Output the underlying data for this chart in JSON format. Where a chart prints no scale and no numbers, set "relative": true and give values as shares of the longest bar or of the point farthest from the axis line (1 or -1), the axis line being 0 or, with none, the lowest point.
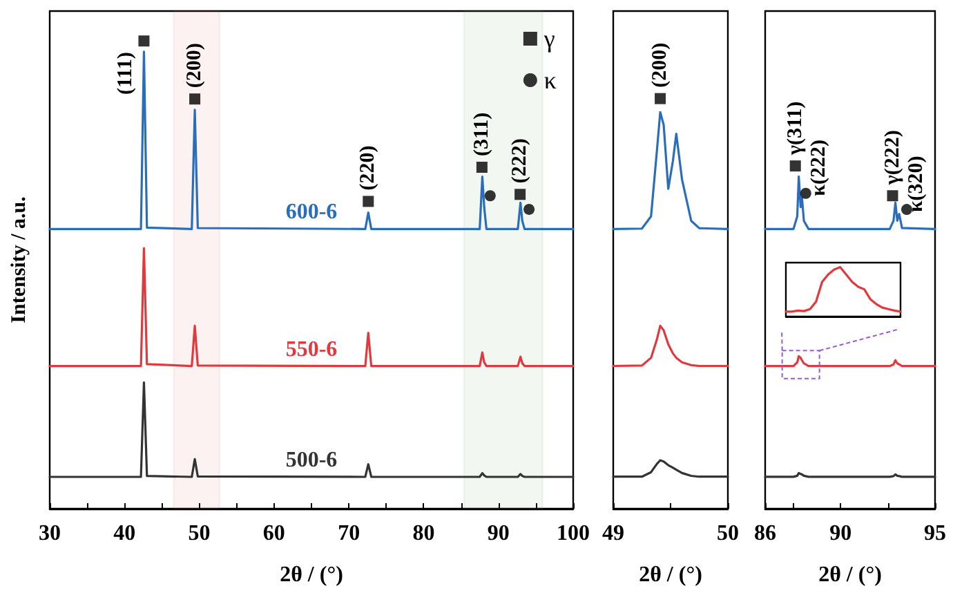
{
  "chart_data": [
    {
      "type": "line",
      "relative": true,
      "xlabel": "2θ / (°)",
      "ylabel": "Intensity / a.u.",
      "xlim": [
        30,
        100
      ],
      "xticks": [
        30,
        {
          "value": 35,
          "label": null
        },
        40,
        {
          "value": 45,
          "label": null
        },
        50,
        {
          "value": 55,
          "label": null
        },
        60,
        {
          "value": 65,
          "label": null
        },
        70,
        {
          "value": 75,
          "label": null
        },
        80,
        {
          "value": 85,
          "label": null
        },
        90,
        {
          "value": 95,
          "label": null
        },
        100
      ],
      "tick_labels": "x",
      "legend": "top right",
      "x": [
        30,
        42.2,
        42.6,
        43.0,
        49.0,
        49.4,
        49.8,
        72.2,
        72.6,
        73.0,
        87.5,
        87.85,
        88.1,
        88.4,
        92.6,
        92.95,
        93.2,
        93.5,
        100
      ],
      "series": [
        {
          "name": "600-6",
          "color": "#2a6ebb",
          "values": [
            0.598,
            0.598,
            0.977,
            0.601,
            0.598,
            0.853,
            0.6,
            0.598,
            0.633,
            0.598,
            0.598,
            0.71,
            0.645,
            0.598,
            0.598,
            0.654,
            0.615,
            0.598,
            0.598
          ]
        },
        {
          "name": "550-6",
          "color": "#e0393e",
          "values": [
            0.305,
            0.305,
            0.557,
            0.309,
            0.305,
            0.391,
            0.306,
            0.305,
            0.376,
            0.305,
            0.305,
            0.334,
            0.313,
            0.305,
            0.305,
            0.325,
            0.311,
            0.305,
            0.305
          ]
        },
        {
          "name": "500-6",
          "color": "#333333",
          "values": [
            0.068,
            0.068,
            0.27,
            0.07,
            0.068,
            0.106,
            0.069,
            0.068,
            0.095,
            0.068,
            0.068,
            0.076,
            0.071,
            0.068,
            0.068,
            0.074,
            0.07,
            0.068,
            0.068
          ]
        },
        {
          "name": "γ",
          "type": "scatter",
          "marker": "square",
          "color": "#000000",
          "x": [
            42.6,
            49.4,
            72.6,
            87.8,
            92.9
          ],
          "values": [
            1.0,
            0.876,
            0.657,
            0.73,
            0.672
          ]
        },
        {
          "name": "κ",
          "type": "scatter",
          "marker": "circle",
          "color": "#000000",
          "x": [
            88.9,
            94.1
          ],
          "values": [
            0.669,
            0.64
          ]
        }
      ],
      "bands": [
        {
          "axis": "x",
          "from": 46.6,
          "to": 52.7,
          "color": "#d9534f"
        },
        {
          "axis": "x",
          "from": 85.4,
          "to": 95.9,
          "color": "#5a9a5a"
        }
      ],
      "annotations": [
        {
          "text": "(111)",
          "x": 42.6,
          "y": 1.0
        },
        {
          "text": "(200)",
          "x": 49.4,
          "y": 0.876
        },
        {
          "text": "(220)",
          "x": 72.6,
          "y": 0.657
        },
        {
          "text": "(311)",
          "x": 87.8,
          "y": 0.73
        },
        {
          "text": "(222)",
          "x": 92.9,
          "y": 0.672
        }
      ]
    },
    {
      "type": "line",
      "relative": true,
      "xlabel": "2θ / (°)",
      "xlim": [
        49,
        50
      ],
      "xticks": [
        49,
        {
          "value": 49.5,
          "label": null
        },
        50
      ],
      "tick_labels": "x",
      "x": [
        49,
        49.25,
        49.33,
        49.38,
        49.41,
        49.44,
        49.48,
        49.52,
        49.55,
        49.6,
        49.68,
        49.75,
        50
      ],
      "series": [
        {
          "color": "#2a6ebb",
          "values": [
            0.682,
            0.683,
            0.713,
            0.87,
            0.967,
            0.936,
            0.78,
            0.847,
            0.914,
            0.803,
            0.702,
            0.684,
            0.682
          ]
        },
        {
          "color": "#e0393e",
          "values": [
            0.348,
            0.349,
            0.368,
            0.412,
            0.446,
            0.435,
            0.401,
            0.379,
            0.368,
            0.357,
            0.35,
            0.348,
            0.348
          ]
        },
        {
          "color": "#333333",
          "values": [
            0.078,
            0.078,
            0.089,
            0.109,
            0.118,
            0.115,
            0.106,
            0.1,
            0.095,
            0.087,
            0.08,
            0.078,
            0.078
          ]
        },
        {
          "type": "scatter",
          "marker": "square",
          "color": "#000000",
          "x": [
            49.41
          ],
          "values": [
            1.0
          ]
        }
      ],
      "annotations": [
        {
          "text": "(200)",
          "x": 49.41,
          "y": 1.0
        }
      ]
    },
    {
      "type": "line",
      "relative": true,
      "xlabel": "2θ / (°)",
      "xlim": [
        86,
        95
      ],
      "xticks": [
        86,
        {
          "value": 87.5,
          "label": null
        },
        90,
        {
          "value": 92.5,
          "label": null
        },
        95
      ],
      "tick_labels": "x",
      "x": [
        86,
        87.5,
        87.7,
        87.78,
        87.88,
        87.95,
        88.05,
        88.3,
        92.6,
        92.8,
        92.9,
        93.0,
        93.1,
        93.25,
        95
      ],
      "series": [
        {
          "color": "#2a6ebb",
          "values": [
            0.816,
            0.816,
            0.853,
            0.969,
            0.88,
            0.907,
            0.84,
            0.816,
            0.816,
            0.84,
            0.893,
            0.84,
            0.86,
            0.819,
            0.816
          ]
        },
        {
          "color": "#e0393e",
          "values": [
            0.416,
            0.416,
            0.427,
            0.445,
            0.44,
            0.433,
            0.424,
            0.416,
            0.416,
            0.421,
            0.433,
            0.424,
            0.421,
            0.416,
            0.416
          ]
        },
        {
          "color": "#333333",
          "values": [
            0.093,
            0.093,
            0.096,
            0.104,
            0.101,
            0.1,
            0.096,
            0.093,
            0.093,
            0.095,
            0.1,
            0.096,
            0.095,
            0.093,
            0.093
          ]
        },
        {
          "type": "scatter",
          "marker": "square",
          "color": "#000000",
          "x": [
            87.6,
            92.75
          ],
          "values": [
            1.0,
            0.913
          ]
        },
        {
          "type": "scatter",
          "marker": "circle",
          "color": "#000000",
          "x": [
            88.15,
            93.5
          ],
          "values": [
            0.92,
            0.873
          ]
        }
      ],
      "annotations": [
        {
          "text": "γ(311)",
          "x": 87.6,
          "y": 1.0
        },
        {
          "text": "κ(222)",
          "x": 88.15,
          "y": 0.92
        },
        {
          "text": "γ(222)",
          "x": 92.75,
          "y": 0.913
        },
        {
          "text": "κ(320)",
          "x": 93.5,
          "y": 0.873
        }
      ]
    },
    {
      "type": "line",
      "relative": true,
      "categories": [
        null,
        null,
        null,
        null,
        null,
        null,
        null,
        null,
        null,
        null,
        null,
        null,
        null,
        null,
        null,
        null,
        null,
        null,
        null,
        null
      ],
      "series": [
        {
          "color": "#e0393e",
          "values": [
            0.1,
            0.1,
            0.12,
            0.11,
            0.15,
            0.3,
            0.7,
            0.85,
            0.95,
            1.0,
            0.85,
            0.7,
            0.6,
            0.55,
            0.35,
            0.25,
            0.18,
            0.15,
            0.12,
            0.1
          ]
        }
      ]
    }
  ]
}
